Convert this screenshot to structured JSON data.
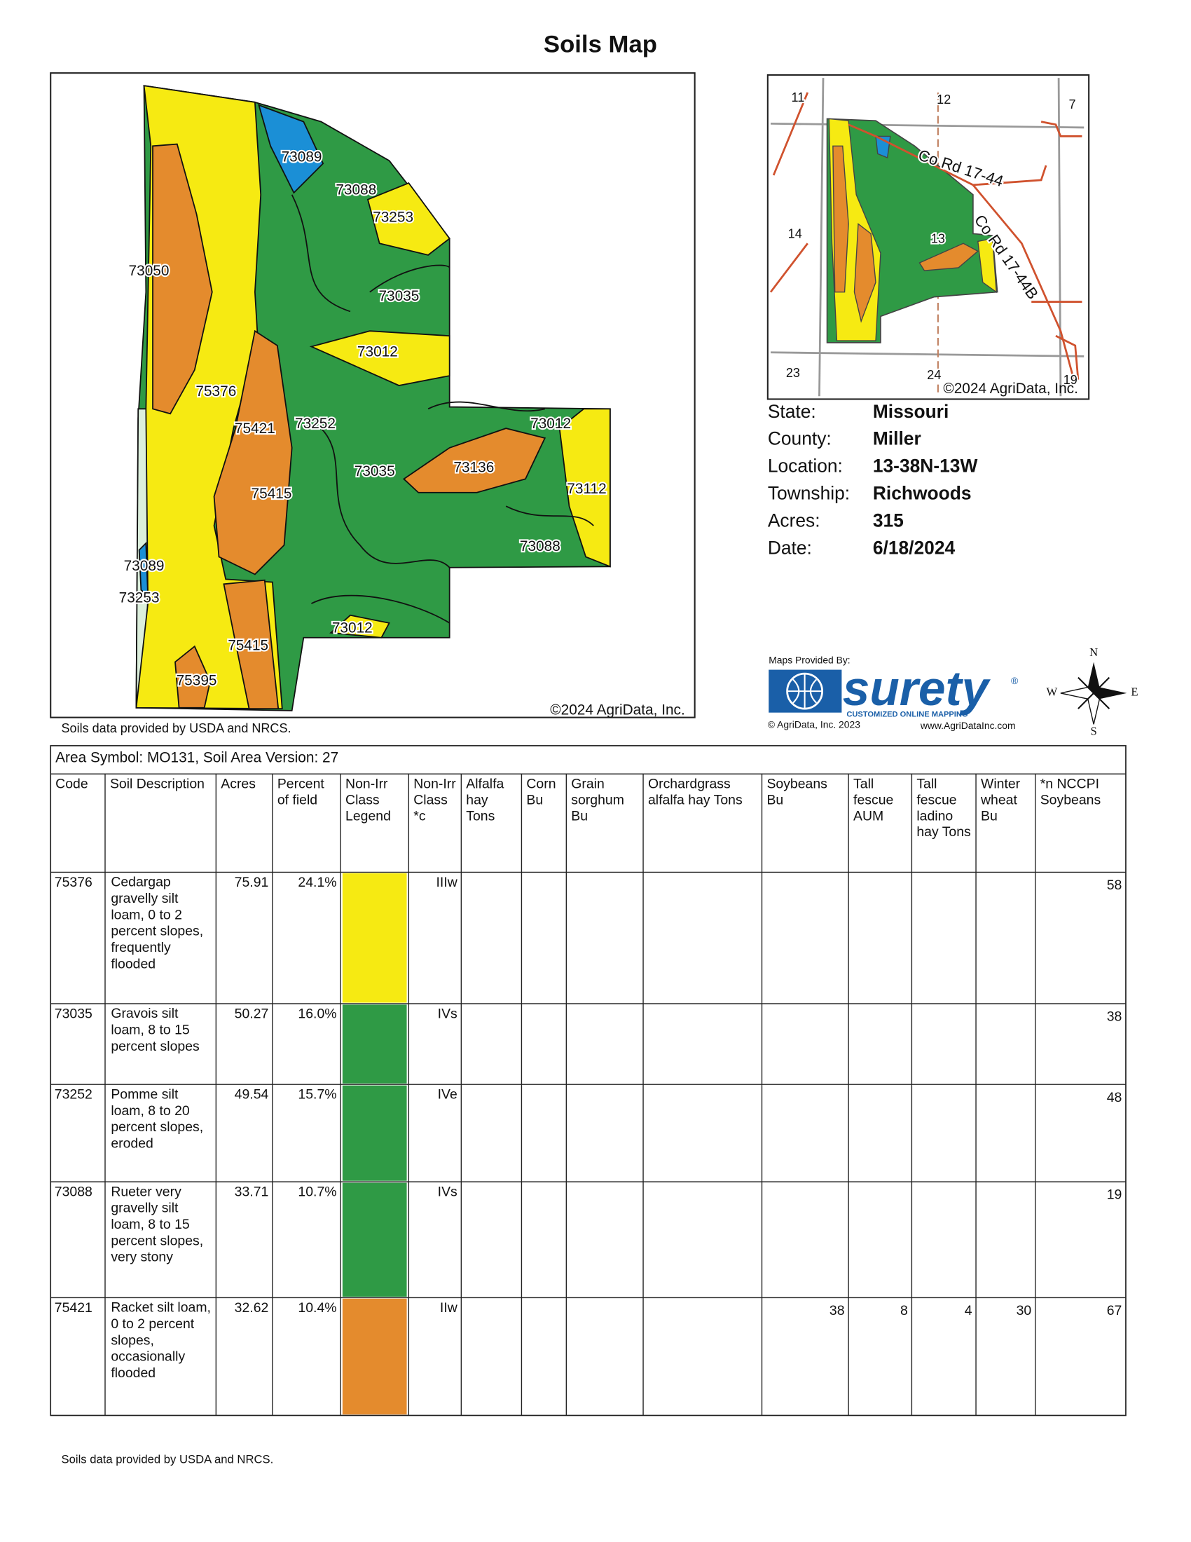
{
  "title": "Soils Map",
  "map": {
    "labels": [
      "73089",
      "73088",
      "73253",
      "73050",
      "73035",
      "73012",
      "75376",
      "75421",
      "73252",
      "73012",
      "73035",
      "73136",
      "75415",
      "73112",
      "73088",
      "73089",
      "73253",
      "73012",
      "75415",
      "75395"
    ],
    "copyright": "©2024 AgriData, Inc."
  },
  "inset": {
    "labels": [
      "11",
      "12",
      "7",
      "14",
      "13",
      "23",
      "24",
      "19"
    ],
    "roads": [
      "Co Rd 17-44",
      "Co Rd 17-44B"
    ],
    "copyright": "©2024 AgriData, Inc."
  },
  "info": [
    {
      "label": "State:",
      "value": "Missouri"
    },
    {
      "label": "County:",
      "value": "Miller"
    },
    {
      "label": "Location:",
      "value": "13-38N-13W"
    },
    {
      "label": "Township:",
      "value": "Richwoods"
    },
    {
      "label": "Acres:",
      "value": "315"
    },
    {
      "label": "Date:",
      "value": "6/18/2024"
    }
  ],
  "logo": {
    "provided_by": "Maps Provided By:",
    "brand": "surety",
    "tagline": "CUSTOMIZED ONLINE MAPPING",
    "copyright": "© AgriData, Inc. 2023",
    "url": "www.AgriDataInc.com"
  },
  "compass": [
    "N",
    "W",
    "E",
    "S"
  ],
  "source_note": "Soils data provided by USDA and NRCS.",
  "table": {
    "area": "Area Symbol: MO131, Soil Area Version: 27",
    "headers": [
      "Code",
      "Soil Description",
      "Acres",
      "Percent of field",
      "Non-Irr Class Legend",
      "Non-Irr Class *c",
      "Alfalfa hay Tons",
      "Corn Bu",
      "Grain sorghum Bu",
      "Orchardgrass alfalfa hay Tons",
      "Soybeans Bu",
      "Tall fescue AUM",
      "Tall fescue ladino hay Tons",
      "Winter wheat Bu",
      "*n NCCPI Soybeans"
    ],
    "rows": [
      {
        "code": "75376",
        "description": "Cedargap gravelly silt loam, 0 to 2 percent slopes, frequently flooded",
        "acres": 75.91,
        "percent": "24.1%",
        "legend_color": "#f6ea12",
        "class": "IIIw",
        "yields": [
          null,
          null,
          null,
          null,
          null,
          null,
          null,
          null,
          58
        ]
      },
      {
        "code": "73035",
        "description": "Gravois silt loam, 8 to 15 percent slopes",
        "acres": 50.27,
        "percent": "16.0%",
        "legend_color": "#2f9a45",
        "class": "IVs",
        "yields": [
          null,
          null,
          null,
          null,
          null,
          null,
          null,
          null,
          38
        ]
      },
      {
        "code": "73252",
        "description": "Pomme silt loam, 8 to 20 percent slopes, eroded",
        "acres": 49.54,
        "percent": "15.7%",
        "legend_color": "#2f9a45",
        "class": "IVe",
        "yields": [
          null,
          null,
          null,
          null,
          null,
          null,
          null,
          null,
          48
        ]
      },
      {
        "code": "73088",
        "description": "Rueter very gravelly silt loam, 8 to 15 percent slopes, very stony",
        "acres": 33.71,
        "percent": "10.7%",
        "legend_color": "#2f9a45",
        "class": "IVs",
        "yields": [
          null,
          null,
          null,
          null,
          null,
          null,
          null,
          null,
          19
        ]
      },
      {
        "code": "75421",
        "description": "Racket silt loam, 0 to 2 percent slopes, occasionally flooded",
        "acres": 32.62,
        "percent": "10.4%",
        "legend_color": "#e48b2d",
        "class": "IIw",
        "yields": [
          null,
          null,
          null,
          null,
          38,
          8,
          4,
          30,
          67
        ]
      }
    ]
  },
  "footer": "Soils data provided by USDA and NRCS."
}
